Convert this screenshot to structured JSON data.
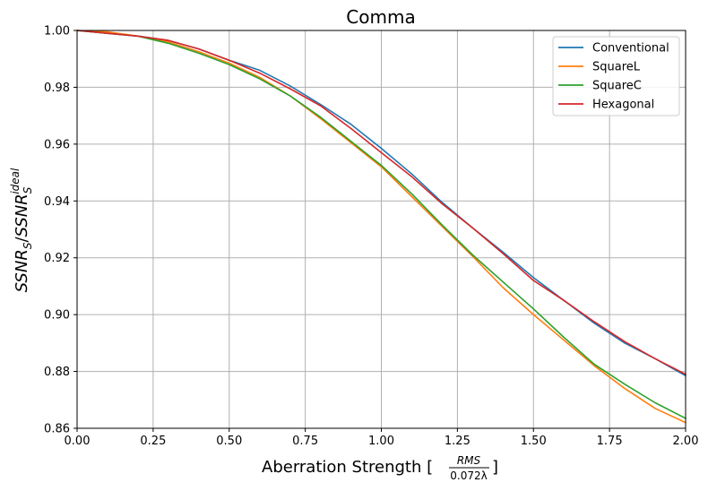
{
  "chart_data": {
    "type": "line",
    "title": "Comma",
    "xlabel": {
      "text": "Aberration Strength [",
      "frac_numerator": "RMS",
      "frac_denominator": "0.072λ",
      "suffix": "]"
    },
    "ylabel": {
      "num_base": "SSNR",
      "num_sub": "S",
      "den_base": "SSNR",
      "den_sub": "S",
      "den_sup": "ideal"
    },
    "xlim": [
      0,
      2.0
    ],
    "ylim": [
      0.86,
      1.0
    ],
    "x_ticks": [
      0.0,
      0.25,
      0.5,
      0.75,
      1.0,
      1.25,
      1.5,
      1.75,
      2.0
    ],
    "x_tick_labels": [
      "0.00",
      "0.25",
      "0.50",
      "0.75",
      "1.00",
      "1.25",
      "1.50",
      "1.75",
      "2.00"
    ],
    "y_ticks": [
      0.86,
      0.88,
      0.9,
      0.92,
      0.94,
      0.96,
      0.98,
      1.0
    ],
    "y_tick_labels": [
      "0.86",
      "0.88",
      "0.90",
      "0.92",
      "0.94",
      "0.96",
      "0.98",
      "1.00"
    ],
    "grid": true,
    "legend_position": "top-right",
    "x": [
      0.0,
      0.1,
      0.2,
      0.3,
      0.4,
      0.5,
      0.6,
      0.7,
      0.8,
      0.9,
      1.0,
      1.1,
      1.2,
      1.3,
      1.4,
      1.5,
      1.6,
      1.7,
      1.8,
      1.9,
      2.0
    ],
    "series": [
      {
        "name": "Conventional",
        "color": "#1f77b4",
        "values": [
          1.0,
          0.999,
          0.998,
          0.9965,
          0.9935,
          0.9895,
          0.986,
          0.9805,
          0.974,
          0.967,
          0.9585,
          0.9495,
          0.9395,
          0.9305,
          0.922,
          0.913,
          0.905,
          0.897,
          0.89,
          0.8845,
          0.8785
        ]
      },
      {
        "name": "SquareL",
        "color": "#ff7f0e",
        "values": [
          1.0,
          0.9995,
          0.998,
          0.996,
          0.9925,
          0.9885,
          0.9835,
          0.977,
          0.969,
          0.9605,
          0.952,
          0.9415,
          0.931,
          0.9205,
          0.9095,
          0.9,
          0.891,
          0.882,
          0.874,
          0.867,
          0.862
        ]
      },
      {
        "name": "SquareC",
        "color": "#2ca02c",
        "values": [
          1.0,
          0.999,
          0.998,
          0.9955,
          0.992,
          0.988,
          0.983,
          0.977,
          0.9695,
          0.961,
          0.9525,
          0.9425,
          0.9315,
          0.921,
          0.9115,
          0.902,
          0.892,
          0.8825,
          0.8755,
          0.869,
          0.8635
        ]
      },
      {
        "name": "Hexagonal",
        "color": "#d62728",
        "values": [
          1.0,
          0.999,
          0.998,
          0.9965,
          0.9935,
          0.9895,
          0.985,
          0.9795,
          0.9735,
          0.9655,
          0.957,
          0.9485,
          0.939,
          0.9305,
          0.9215,
          0.912,
          0.905,
          0.8975,
          0.8905,
          0.8845,
          0.879
        ]
      }
    ]
  }
}
